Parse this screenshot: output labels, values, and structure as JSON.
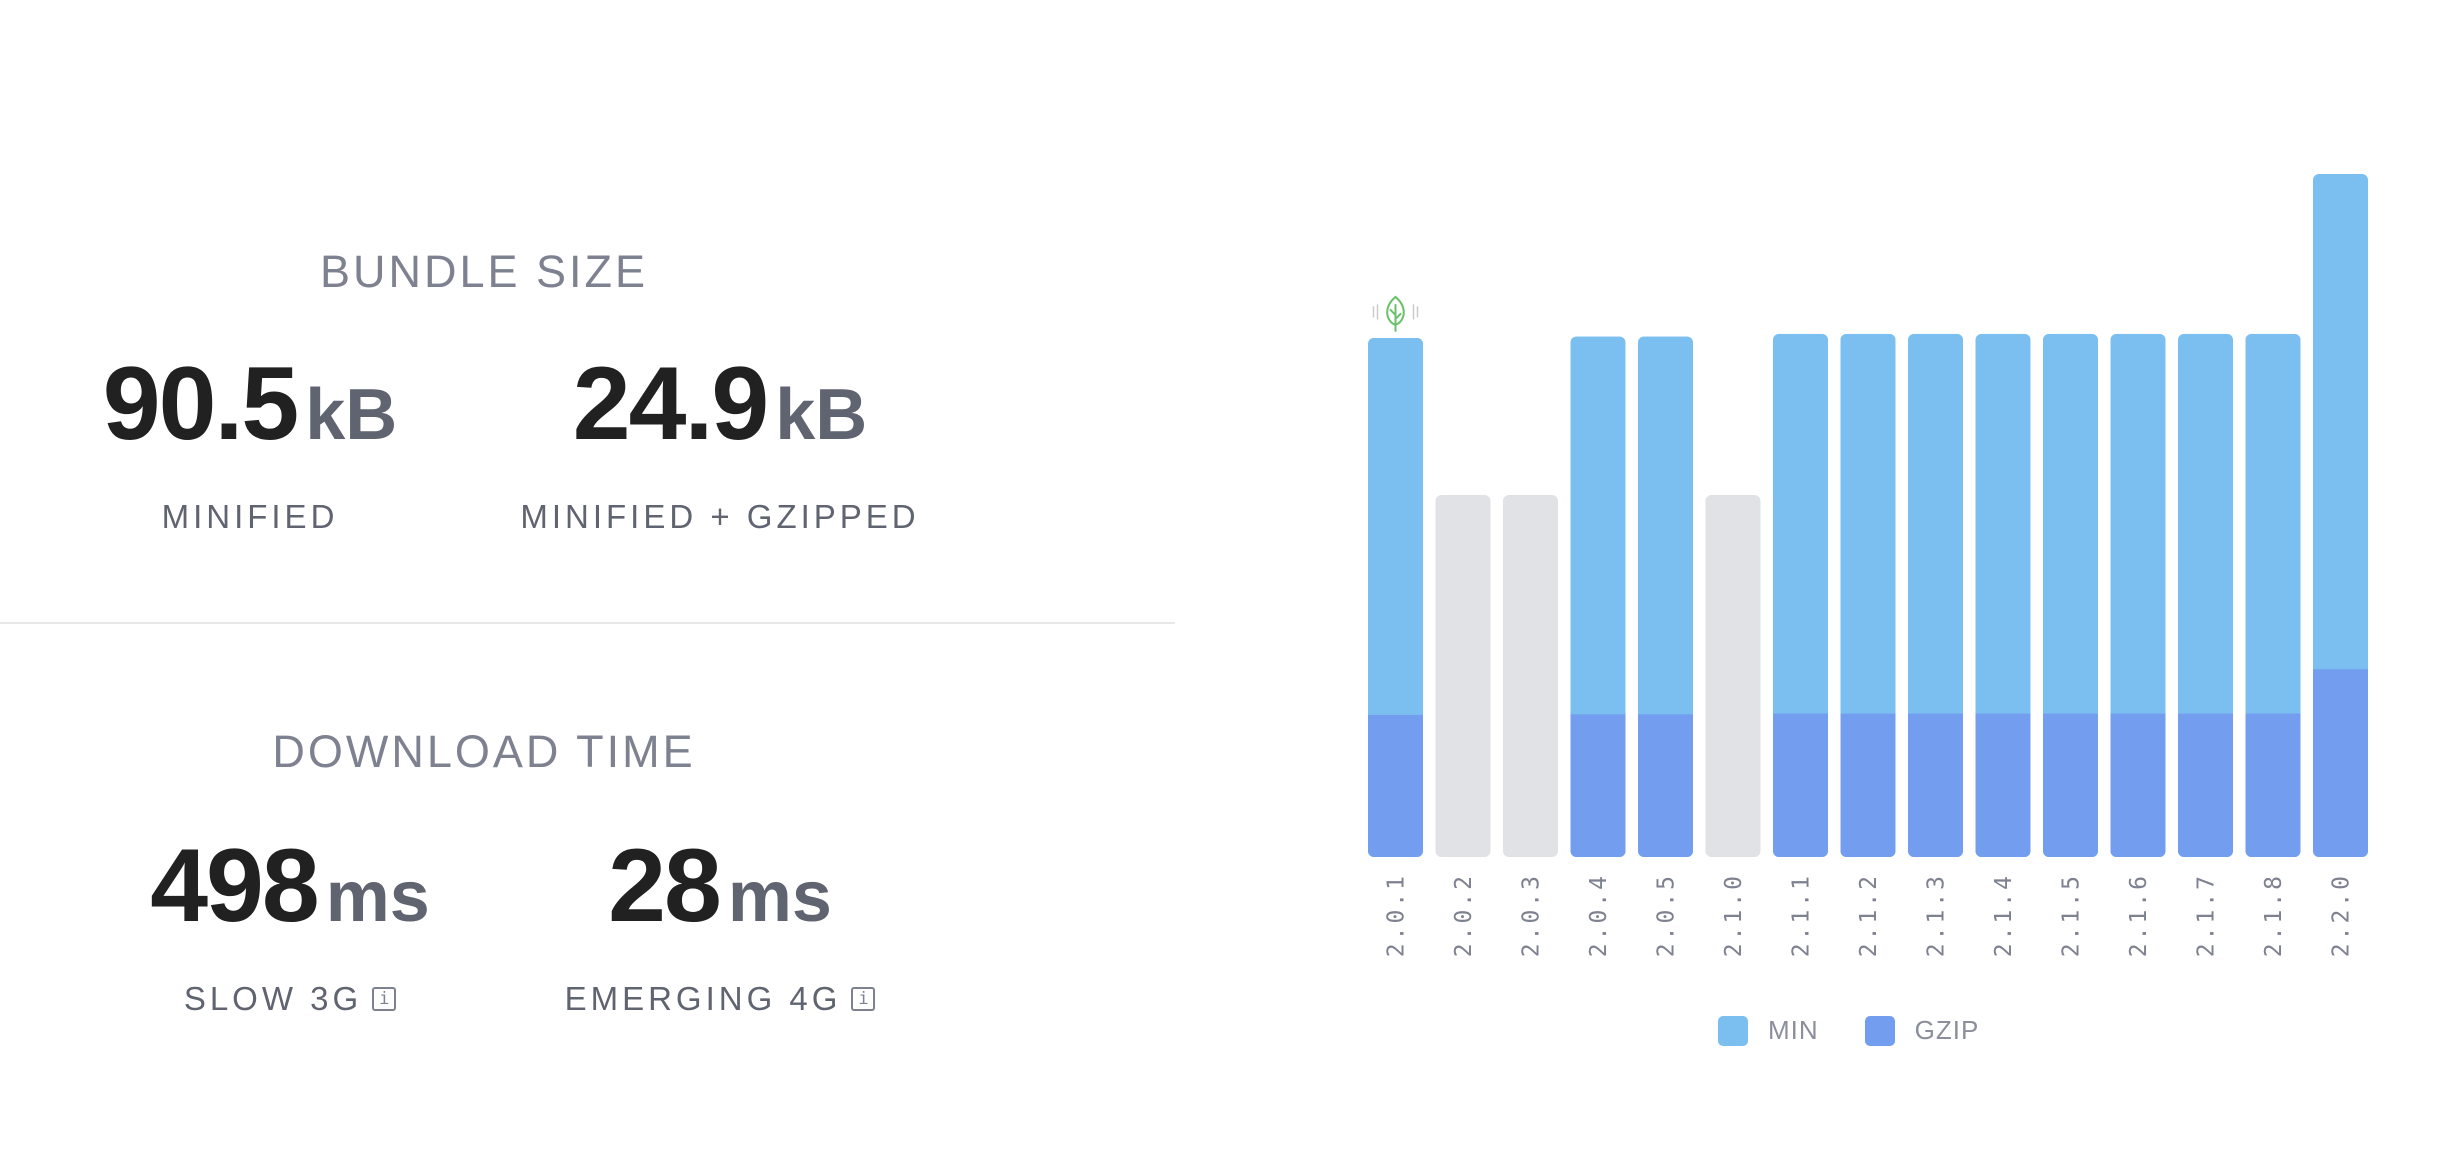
{
  "bundle_size": {
    "title": "BUNDLE SIZE",
    "minified": {
      "value": "90.5",
      "unit": "kB",
      "label": "MINIFIED"
    },
    "gzipped": {
      "value": "24.9",
      "unit": "kB",
      "label": "MINIFIED + GZIPPED"
    }
  },
  "download_time": {
    "title": "DOWNLOAD TIME",
    "slow_3g": {
      "value": "498",
      "unit": "ms",
      "label": "SLOW 3G",
      "info_icon": "info-icon"
    },
    "emerging_4g": {
      "value": "28",
      "unit": "ms",
      "label": "EMERGING 4G",
      "info_icon": "info-icon"
    }
  },
  "legend": {
    "min_label": "MIN",
    "gzip_label": "GZIP",
    "min_color": "#7bbff1",
    "gzip_color": "#739ef0"
  },
  "chart_data": {
    "type": "bar",
    "stacked": true,
    "categories": [
      "2.0.1",
      "2.0.2",
      "2.0.3",
      "2.0.4",
      "2.0.5",
      "2.1.0",
      "2.1.1",
      "2.1.2",
      "2.1.3",
      "2.1.4",
      "2.1.5",
      "2.1.6",
      "2.1.7",
      "2.1.8",
      "2.2.0"
    ],
    "series": [
      {
        "name": "MIN",
        "values": [
          76.0,
          53.0,
          53.0,
          76.2,
          76.2,
          53.0,
          76.6,
          76.6,
          76.6,
          76.6,
          76.6,
          76.6,
          76.6,
          76.6,
          100.0
        ]
      },
      {
        "name": "GZIP",
        "values": [
          20.8,
          null,
          null,
          20.9,
          20.9,
          null,
          21.0,
          21.0,
          21.0,
          21.0,
          21.0,
          21.0,
          21.0,
          21.0,
          27.5
        ]
      }
    ],
    "unavailable": [
      false,
      true,
      true,
      false,
      false,
      true,
      false,
      false,
      false,
      false,
      false,
      false,
      false,
      false,
      false
    ],
    "tree_shakeable_marker": "2.0.1",
    "marker_icon": "leaf-icon",
    "unavailable_color": "#e1e2e5",
    "legend_position": "bottom-center"
  }
}
